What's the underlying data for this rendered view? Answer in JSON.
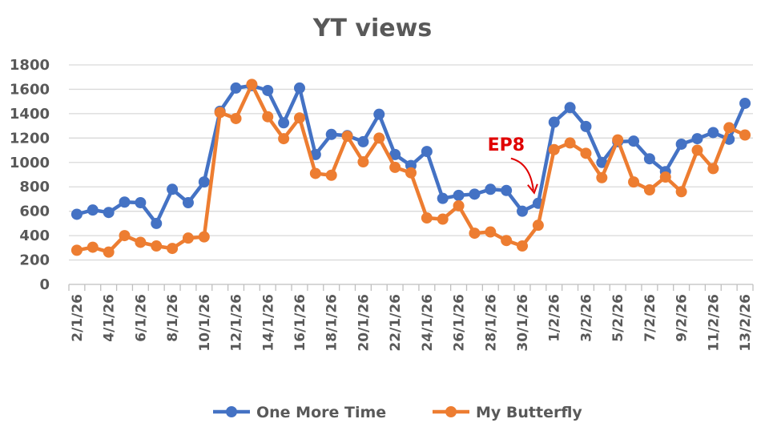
{
  "chart_data": {
    "type": "line",
    "title": "YT views",
    "xlabel": "",
    "ylabel": "",
    "ylim": [
      0,
      1800
    ],
    "yticks": [
      0,
      200,
      400,
      600,
      800,
      1000,
      1200,
      1400,
      1600,
      1800
    ],
    "grid": true,
    "legend_position": "bottom",
    "x": [
      "2/1/26",
      "3/1/26",
      "4/1/26",
      "5/1/26",
      "6/1/26",
      "7/1/26",
      "8/1/26",
      "9/1/26",
      "10/1/26",
      "11/1/26",
      "12/1/26",
      "13/1/26",
      "14/1/26",
      "15/1/26",
      "16/1/26",
      "17/1/26",
      "18/1/26",
      "19/1/26",
      "20/1/26",
      "21/1/26",
      "22/1/26",
      "23/1/26",
      "24/1/26",
      "25/1/26",
      "26/1/26",
      "27/1/26",
      "28/1/26",
      "29/1/26",
      "30/1/26",
      "31/1/26",
      "1/2/26",
      "2/2/26",
      "3/2/26",
      "4/2/26",
      "5/2/26",
      "6/2/26",
      "7/2/26",
      "8/2/26",
      "9/2/26",
      "10/2/26",
      "11/2/26",
      "12/2/26",
      "13/2/26"
    ],
    "x_tick_labels": [
      "2/1/26",
      "4/1/26",
      "6/1/26",
      "8/1/26",
      "10/1/26",
      "12/1/26",
      "14/1/26",
      "16/1/26",
      "18/1/26",
      "20/1/26",
      "22/1/26",
      "24/1/26",
      "26/1/26",
      "28/1/26",
      "30/1/26",
      "1/2/26",
      "3/2/26",
      "5/2/26",
      "7/2/26",
      "9/2/26",
      "11/2/26",
      "13/2/26"
    ],
    "series": [
      {
        "name": "One More Time",
        "color": "#4472c4",
        "values": [
          575,
          610,
          590,
          675,
          670,
          500,
          780,
          670,
          840,
          1420,
          1610,
          1630,
          1590,
          1325,
          1610,
          1065,
          1230,
          1220,
          1170,
          1395,
          1065,
          975,
          1090,
          705,
          730,
          740,
          780,
          770,
          600,
          665,
          1330,
          1450,
          1295,
          1000,
          1170,
          1175,
          1030,
          925,
          1150,
          1195,
          1245,
          1190,
          1485
        ]
      },
      {
        "name": "My Butterfly",
        "color": "#ed7d31",
        "values": [
          280,
          305,
          265,
          400,
          345,
          315,
          295,
          380,
          390,
          1410,
          1360,
          1640,
          1375,
          1195,
          1365,
          910,
          895,
          1215,
          1005,
          1200,
          960,
          915,
          545,
          535,
          645,
          420,
          430,
          360,
          315,
          485,
          1105,
          1160,
          1075,
          875,
          1185,
          840,
          775,
          880,
          760,
          1100,
          950,
          1285,
          1225
        ]
      }
    ],
    "annotations": [
      {
        "text": "EP8",
        "x": "31/1/26",
        "arrow_color": "#e00000"
      }
    ]
  }
}
